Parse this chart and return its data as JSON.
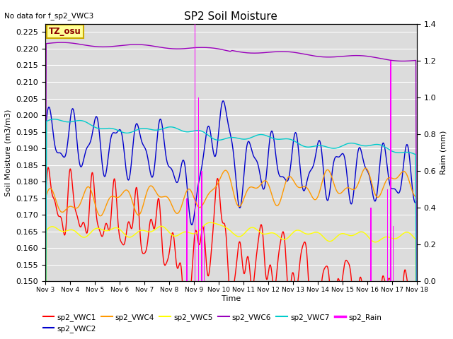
{
  "title": "SP2 Soil Moisture",
  "no_data_text": "No data for f_sp2_VWC3",
  "tz_label": "TZ_osu",
  "xlabel": "Time",
  "ylabel_left": "Soil Moisture (m3/m3)",
  "ylabel_right": "Raim (mm)",
  "ylim_left": [
    0.15,
    0.2275
  ],
  "ylim_right": [
    0.0,
    1.4
  ],
  "bg_color": "#dcdcdc",
  "fig_color": "#ffffff",
  "grid_color": "#ffffff",
  "colors": {
    "VWC1": "#ff0000",
    "VWC2": "#0000cc",
    "VWC4": "#ff9900",
    "VWC5": "#ffff00",
    "VWC6": "#9900bb",
    "VWC7": "#00cccc",
    "Rain": "#ff00ff"
  },
  "x_tick_labels": [
    "Nov 3",
    "Nov 4",
    "Nov 5",
    "Nov 6",
    "Nov 7",
    "Nov 8",
    "Nov 9",
    "Nov 10",
    "Nov 11",
    "Nov 12",
    "Nov 13",
    "Nov 14",
    "Nov 15",
    "Nov 16",
    "Nov 17",
    "Nov 18"
  ],
  "rain_events": [
    8.72,
    9.05,
    9.18,
    9.32,
    9.42,
    16.15,
    16.82,
    16.95,
    17.05
  ],
  "rain_heights": [
    0.45,
    1.4,
    1.0,
    0.6,
    0.3,
    0.4,
    0.5,
    1.2,
    0.3
  ]
}
